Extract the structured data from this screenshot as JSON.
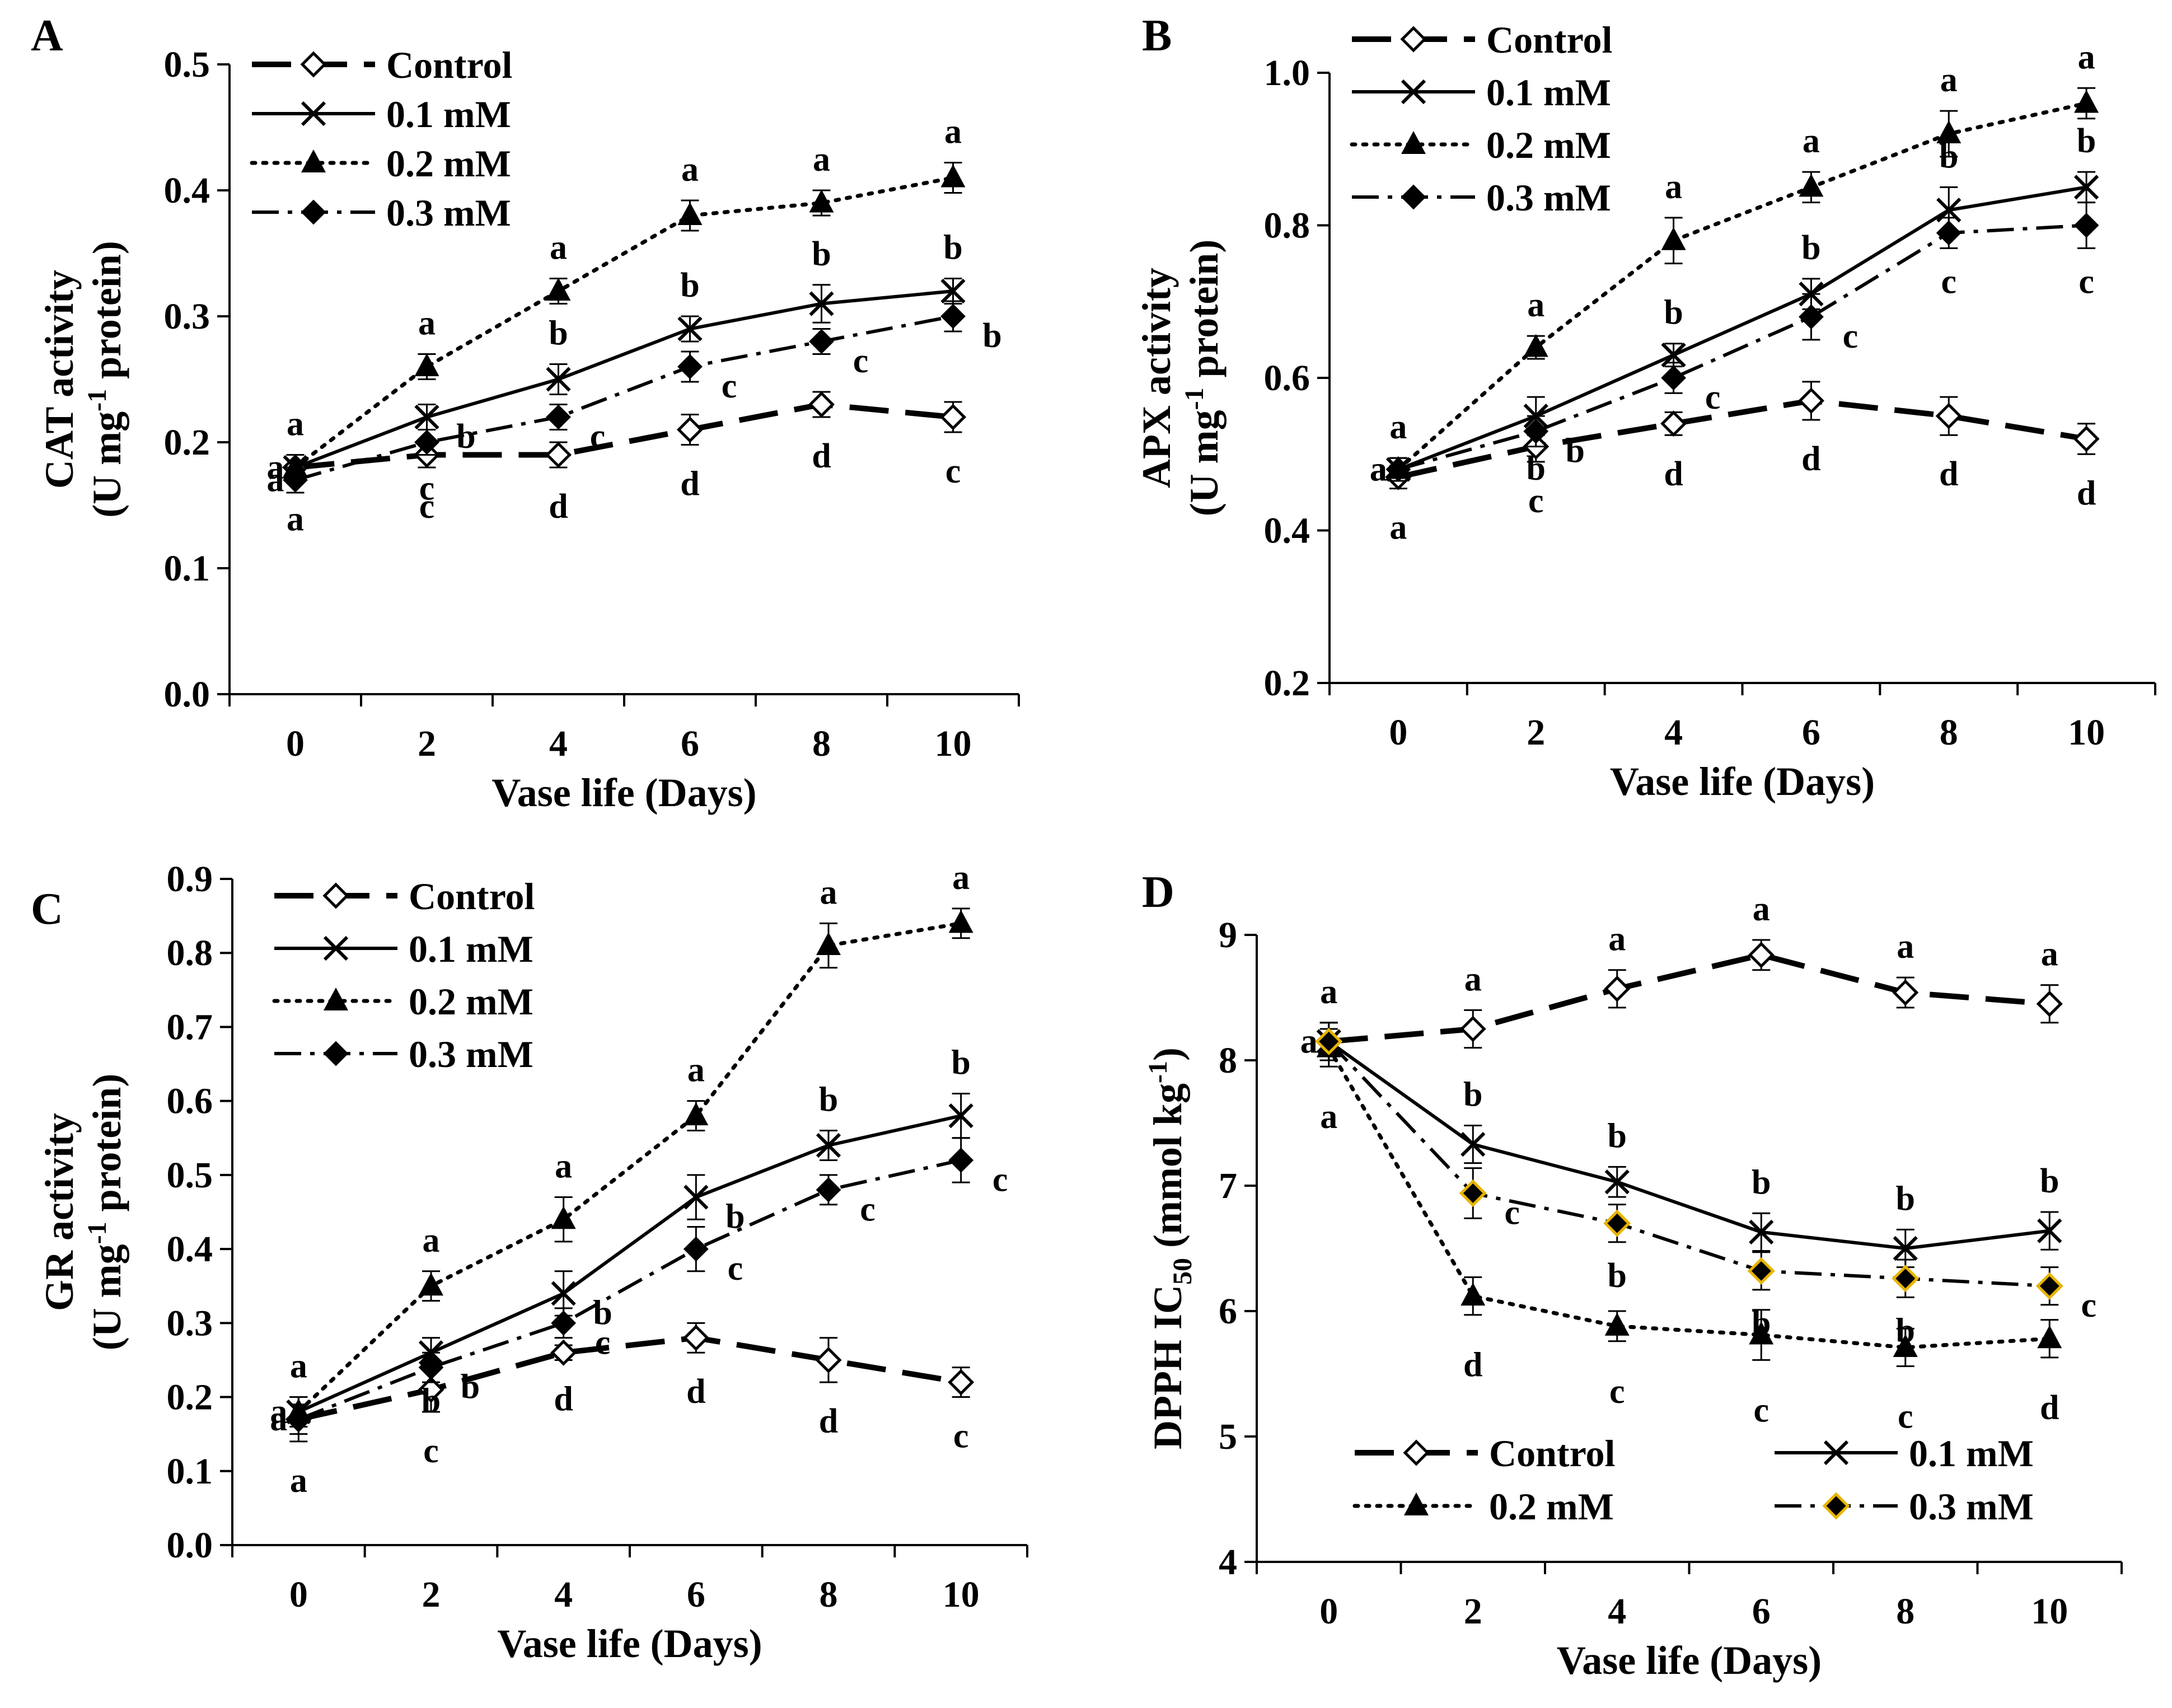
{
  "chart_data": [
    {
      "type": "line",
      "panel_label": "A",
      "xlabel": "Vase life (Days)",
      "ylabel": [
        "CAT activity",
        "(U mg",
        "-1",
        " protein)"
      ],
      "x": [
        0,
        2,
        4,
        6,
        8,
        10
      ],
      "xticks": [
        "0",
        "2",
        "4",
        "6",
        "8",
        "10"
      ],
      "ylim": [
        0.0,
        0.5
      ],
      "yticks": [
        "0.0",
        "0.1",
        "0.2",
        "0.3",
        "0.4",
        "0.5"
      ],
      "legend_position": "top-left",
      "series": [
        {
          "name": "Control",
          "values": [
            0.18,
            0.19,
            0.19,
            0.21,
            0.23,
            0.22
          ],
          "errors": [
            0.01,
            0.01,
            0.01,
            0.012,
            0.01,
            0.012
          ],
          "labels": [
            "a",
            "c",
            "d",
            "d",
            "d",
            "c"
          ],
          "label_pos": [
            "below",
            "below",
            "below",
            "below",
            "below",
            "below"
          ]
        },
        {
          "name": "0.1 mM",
          "values": [
            0.18,
            0.22,
            0.25,
            0.29,
            0.31,
            0.32
          ],
          "errors": [
            0.01,
            0.01,
            0.012,
            0.01,
            0.015,
            0.01
          ],
          "labels": [
            "a",
            "b",
            "b",
            "b",
            "b",
            "b"
          ],
          "label_pos": [
            "left",
            "right",
            "above",
            "above",
            "above",
            "above"
          ]
        },
        {
          "name": "0.2 mM",
          "values": [
            0.18,
            0.26,
            0.32,
            0.38,
            0.39,
            0.41
          ],
          "errors": [
            0.01,
            0.01,
            0.01,
            0.012,
            0.01,
            0.012
          ],
          "labels": [
            "a",
            "a",
            "a",
            "a",
            "a",
            "a"
          ],
          "label_pos": [
            "above",
            "above",
            "above",
            "above",
            "above",
            "above"
          ]
        },
        {
          "name": "0.3 mM",
          "values": [
            0.17,
            0.2,
            0.22,
            0.26,
            0.28,
            0.3
          ],
          "errors": [
            0.01,
            0.01,
            0.01,
            0.012,
            0.01,
            0.012
          ],
          "labels": [
            "a",
            "c",
            "c",
            "c",
            "c",
            "b"
          ],
          "label_pos": [
            "left",
            "below",
            "right",
            "right",
            "right",
            "right"
          ]
        }
      ]
    },
    {
      "type": "line",
      "panel_label": "B",
      "xlabel": "Vase life (Days)",
      "ylabel": [
        "APX activity",
        "(U mg",
        "-1",
        " protein)"
      ],
      "x": [
        0,
        2,
        4,
        6,
        8,
        10
      ],
      "xticks": [
        "0",
        "2",
        "4",
        "6",
        "8",
        "10"
      ],
      "ylim": [
        0.2,
        1.0
      ],
      "yticks": [
        "0.2",
        "0.4",
        "0.6",
        "0.8",
        "1.0"
      ],
      "legend_position": "top-left",
      "series": [
        {
          "name": "Control",
          "values": [
            0.47,
            0.51,
            0.54,
            0.57,
            0.55,
            0.52
          ],
          "errors": [
            0.015,
            0.02,
            0.015,
            0.025,
            0.025,
            0.02
          ],
          "labels": [
            "a",
            "c",
            "d",
            "d",
            "d",
            "d"
          ],
          "label_pos": [
            "below",
            "below",
            "below",
            "below",
            "below",
            "below"
          ]
        },
        {
          "name": "0.1 mM",
          "values": [
            0.48,
            0.55,
            0.63,
            0.71,
            0.82,
            0.85
          ],
          "errors": [
            0.015,
            0.025,
            0.015,
            0.02,
            0.03,
            0.02
          ],
          "labels": [
            "a",
            "b",
            "b",
            "b",
            "b",
            "b"
          ],
          "label_pos": [
            "left",
            "below",
            "above",
            "above",
            "above",
            "above"
          ]
        },
        {
          "name": "0.2 mM",
          "values": [
            0.48,
            0.64,
            0.78,
            0.85,
            0.92,
            0.96
          ],
          "errors": [
            0.015,
            0.015,
            0.03,
            0.02,
            0.03,
            0.02
          ],
          "labels": [
            "a",
            "a",
            "a",
            "a",
            "a",
            "a"
          ],
          "label_pos": [
            "above",
            "above",
            "above",
            "above",
            "above",
            "above"
          ]
        },
        {
          "name": "0.3 mM",
          "values": [
            0.48,
            0.53,
            0.6,
            0.68,
            0.79,
            0.8
          ],
          "errors": [
            0.015,
            0.02,
            0.02,
            0.03,
            0.02,
            0.03
          ],
          "labels": [
            "a",
            "b",
            "c",
            "c",
            "c",
            "c"
          ],
          "label_pos": [
            "left",
            "right",
            "right",
            "right",
            "below",
            "below"
          ]
        }
      ]
    },
    {
      "type": "line",
      "panel_label": "C",
      "xlabel": "Vase life (Days)",
      "ylabel": [
        "GR activity",
        "(U mg",
        "-1",
        " protein)"
      ],
      "x": [
        0,
        2,
        4,
        6,
        8,
        10
      ],
      "xticks": [
        "0",
        "2",
        "4",
        "6",
        "8",
        "10"
      ],
      "ylim": [
        0.0,
        0.9
      ],
      "yticks": [
        "0.0",
        "0.1",
        "0.2",
        "0.3",
        "0.4",
        "0.5",
        "0.6",
        "0.7",
        "0.8",
        "0.9"
      ],
      "legend_position": "top-left",
      "series": [
        {
          "name": "Control",
          "values": [
            0.17,
            0.21,
            0.26,
            0.28,
            0.25,
            0.22
          ],
          "errors": [
            0.03,
            0.03,
            0.01,
            0.02,
            0.03,
            0.02
          ],
          "labels": [
            "a",
            "c",
            "d",
            "d",
            "d",
            "c"
          ],
          "label_pos": [
            "below",
            "below",
            "below",
            "below",
            "below",
            "below"
          ]
        },
        {
          "name": "0.1 mM",
          "values": [
            0.18,
            0.26,
            0.34,
            0.47,
            0.54,
            0.58
          ],
          "errors": [
            0.02,
            0.02,
            0.03,
            0.03,
            0.02,
            0.03
          ],
          "labels": [
            "a",
            "b",
            "b",
            "b",
            "b",
            "b"
          ],
          "label_pos": [
            "left",
            "below",
            "right",
            "right",
            "above",
            "above"
          ]
        },
        {
          "name": "0.2 mM",
          "values": [
            0.18,
            0.35,
            0.44,
            0.58,
            0.81,
            0.84
          ],
          "errors": [
            0.02,
            0.02,
            0.03,
            0.02,
            0.03,
            0.02
          ],
          "labels": [
            "a",
            "a",
            "a",
            "a",
            "a",
            "a"
          ],
          "label_pos": [
            "above",
            "above",
            "above",
            "above",
            "above",
            "above"
          ]
        },
        {
          "name": "0.3 mM",
          "values": [
            0.17,
            0.24,
            0.3,
            0.4,
            0.48,
            0.52
          ],
          "errors": [
            0.02,
            0.02,
            0.02,
            0.03,
            0.02,
            0.03
          ],
          "labels": [
            "a",
            "b",
            "c",
            "c",
            "c",
            "c"
          ],
          "label_pos": [
            "left",
            "right",
            "right",
            "right",
            "right",
            "right"
          ]
        }
      ]
    },
    {
      "type": "line",
      "panel_label": "D",
      "xlabel": "Vase life (Days)",
      "ylabel": [
        "DPPH IC",
        "50",
        " (mmol kg",
        "-1",
        ")"
      ],
      "x": [
        0,
        2,
        4,
        6,
        8,
        10
      ],
      "xticks": [
        "0",
        "2",
        "4",
        "6",
        "8",
        "10"
      ],
      "ylim": [
        4,
        9
      ],
      "yticks": [
        "4",
        "5",
        "6",
        "7",
        "8",
        "9"
      ],
      "legend_position": "bottom",
      "series": [
        {
          "name": "Control",
          "values": [
            8.15,
            8.25,
            8.57,
            8.84,
            8.54,
            8.45
          ],
          "errors": [
            0.15,
            0.15,
            0.15,
            0.12,
            0.12,
            0.15
          ],
          "labels": [
            "a",
            "a",
            "a",
            "a",
            "a",
            "a"
          ],
          "label_pos": [
            "above",
            "above",
            "above",
            "above",
            "above",
            "above"
          ]
        },
        {
          "name": "0.1 mM",
          "values": [
            8.15,
            7.33,
            7.03,
            6.63,
            6.5,
            6.64
          ],
          "errors": [
            0.15,
            0.15,
            0.12,
            0.15,
            0.15,
            0.15
          ],
          "labels": [
            "a",
            "b",
            "b",
            "b",
            "b",
            "b"
          ],
          "label_pos": [
            "left",
            "above",
            "above",
            "above",
            "above",
            "above"
          ]
        },
        {
          "name": "0.2 mM",
          "values": [
            8.1,
            6.12,
            5.88,
            5.81,
            5.71,
            5.78
          ],
          "errors": [
            0.15,
            0.15,
            0.12,
            0.2,
            0.15,
            0.15
          ],
          "labels": [
            "a",
            "d",
            "c",
            "c",
            "c",
            "d"
          ],
          "label_pos": [
            "below",
            "below",
            "below",
            "below",
            "below",
            "below"
          ]
        },
        {
          "name": "0.3 mM",
          "values": [
            8.15,
            6.94,
            6.7,
            6.32,
            6.26,
            6.2
          ],
          "errors": [
            0.15,
            0.2,
            0.15,
            0.15,
            0.15,
            0.15
          ],
          "labels": [
            "a",
            "c",
            "b",
            "b",
            "b",
            "c"
          ],
          "label_pos": [
            "above",
            "right",
            "below",
            "below",
            "below",
            "right"
          ]
        }
      ]
    }
  ]
}
